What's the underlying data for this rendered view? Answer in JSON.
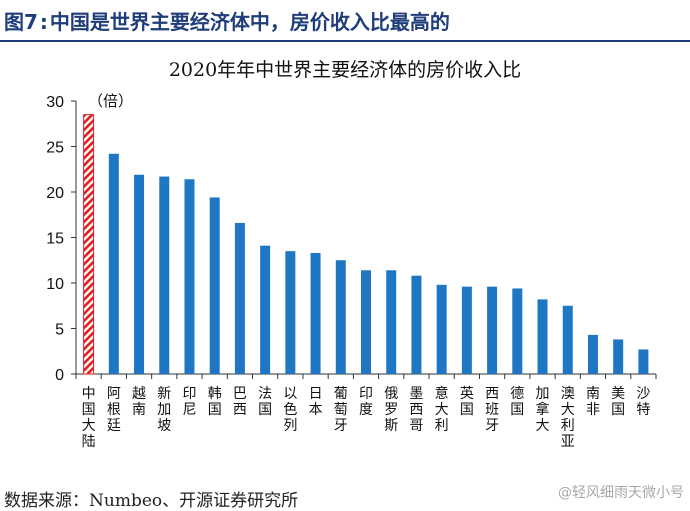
{
  "figure": {
    "label": "图7",
    "separator": ":",
    "title": "中国是世界主要经济体中，房价收入比最高的"
  },
  "source_note": "数据来源：Numbeo、开源证券研究所",
  "watermark": "@轻风细雨天微小号",
  "colors": {
    "header": "#1f3d7a",
    "bar": "#1f77c4",
    "highlight": "#e02020"
  },
  "chart_data": {
    "type": "bar",
    "title": "2020年年中世界主要经济体的房价收入比",
    "unit_label": "（倍）",
    "xlabel": "",
    "ylabel": "",
    "ylim": [
      0,
      30
    ],
    "yticks": [
      0,
      5,
      10,
      15,
      20,
      25,
      30
    ],
    "grid": false,
    "legend": "none",
    "highlight_index": 0,
    "categories": [
      "中国大陆",
      "阿根廷",
      "越南",
      "新加坡",
      "印尼",
      "韩国",
      "巴西",
      "法国",
      "以色列",
      "日本",
      "葡萄牙",
      "印度",
      "俄罗斯",
      "墨西哥",
      "意大利",
      "英国",
      "西班牙",
      "德国",
      "加拿大",
      "澳大利亚",
      "南非",
      "美国",
      "沙特"
    ],
    "values": [
      28.5,
      24.2,
      21.9,
      21.7,
      21.4,
      19.4,
      16.6,
      14.1,
      13.5,
      13.3,
      12.5,
      11.4,
      11.4,
      10.8,
      9.8,
      9.6,
      9.6,
      9.4,
      8.2,
      7.5,
      4.3,
      3.8,
      2.7
    ]
  }
}
